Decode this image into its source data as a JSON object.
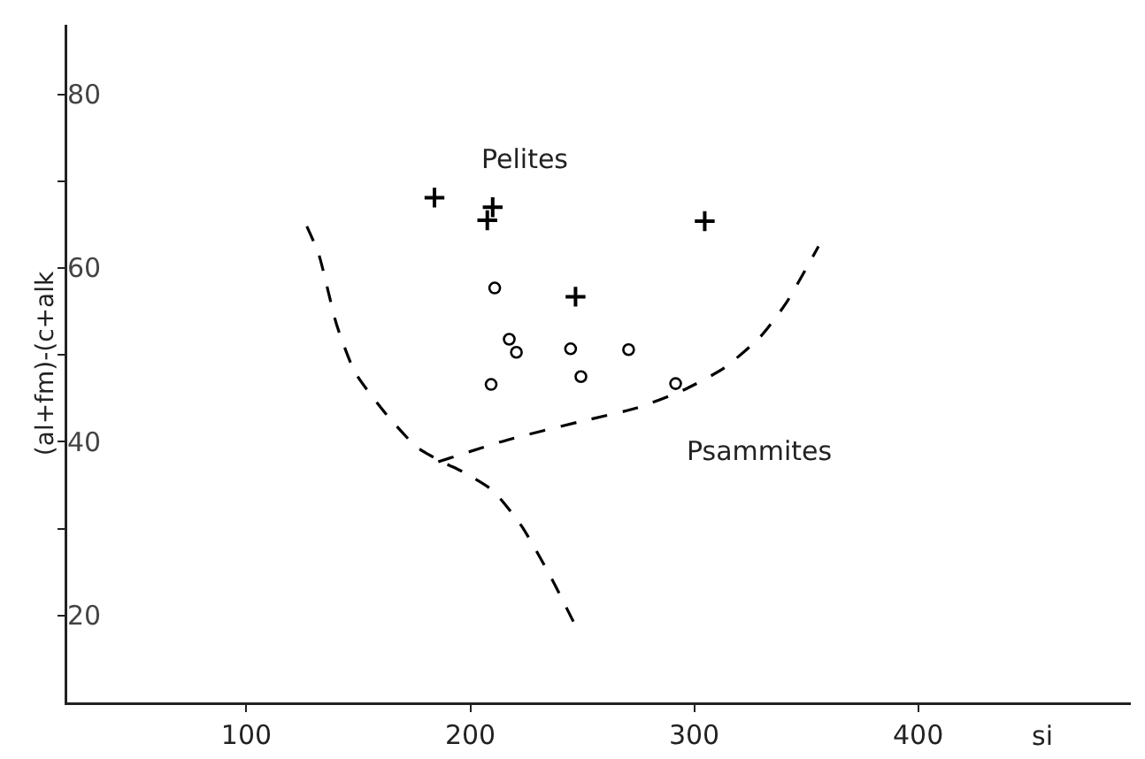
{
  "chart_data": {
    "type": "scatter",
    "xlabel": "si",
    "ylabel": "(al+fm)-(c+alk",
    "xlim": [
      20,
      495
    ],
    "ylim": [
      10,
      88
    ],
    "xticks": [
      100,
      200,
      300,
      400
    ],
    "yticks": [
      20,
      {
        "value": 30,
        "label": null
      },
      40,
      {
        "value": 50,
        "label": null
      },
      60,
      {
        "value": 70,
        "label": null
      },
      80
    ],
    "grid": false,
    "series": [
      {
        "marker": "cross",
        "color": "#000000",
        "x": [
          184,
          210,
          207.6,
          304.7,
          247
        ],
        "values": [
          68.1,
          67.0,
          65.5,
          65.4,
          56.7
        ]
      },
      {
        "marker": "circle",
        "color": "#000000",
        "x": [
          210.9,
          217.4,
          220.6,
          244.8,
          270.7,
          209.3,
          249.4,
          291.7
        ],
        "values": [
          57.7,
          51.8,
          50.3,
          50.7,
          50.6,
          46.6,
          47.5,
          46.7
        ]
      },
      {
        "type": "line",
        "line_style": "dashed",
        "color": "#000000",
        "x": [
          127,
          132.3,
          140.4,
          148.5,
          161.4,
          176,
          187.3,
          197,
          210,
          222.9,
          235.8,
          247
        ],
        "values": [
          64.8,
          61.6,
          53.4,
          48.0,
          43.5,
          39.4,
          37.7,
          36.5,
          34.4,
          30.3,
          24.5,
          18.8
        ]
      },
      {
        "type": "line",
        "line_style": "dashed",
        "color": "#000000",
        "x": [
          185.7,
          216.4,
          248.7,
          274.6,
          295.6,
          313.4,
          329.6,
          340.9,
          355.5
        ],
        "values": [
          37.7,
          40.2,
          42.3,
          43.9,
          46.0,
          48.5,
          52.1,
          55.9,
          62.5
        ]
      }
    ],
    "annotations": [
      "Pelites",
      "Psammites"
    ]
  }
}
